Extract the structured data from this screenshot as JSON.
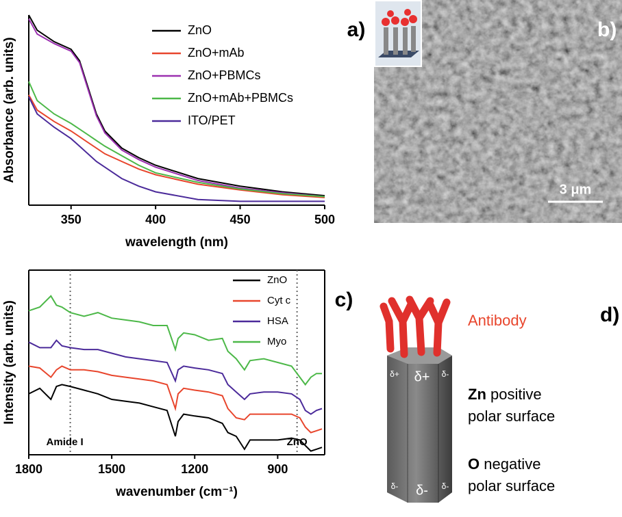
{
  "chart_data": [
    {
      "type": "line",
      "panel_label": "a)",
      "xlabel": "wavelength (nm)",
      "ylabel": "Absorbance (arb. units)",
      "x": [
        325,
        330,
        340,
        350,
        355,
        360,
        365,
        370,
        380,
        390,
        400,
        425,
        450,
        475,
        500
      ],
      "xlim": [
        325,
        500
      ],
      "xticks": [
        350,
        400,
        450,
        500
      ],
      "ylim": [
        0,
        1
      ],
      "frame": false,
      "legend": "upper right",
      "series": [
        {
          "name": "ZnO",
          "color": "#000000",
          "values": [
            1.0,
            0.92,
            0.86,
            0.82,
            0.76,
            0.62,
            0.48,
            0.39,
            0.3,
            0.25,
            0.21,
            0.14,
            0.1,
            0.07,
            0.05
          ]
        },
        {
          "name": "ZnO+mAb",
          "color": "#e8452c",
          "values": [
            0.58,
            0.5,
            0.44,
            0.39,
            0.36,
            0.33,
            0.3,
            0.27,
            0.23,
            0.19,
            0.16,
            0.11,
            0.08,
            0.055,
            0.04
          ]
        },
        {
          "name": "ZnO+PBMCs",
          "color": "#9b30b0",
          "values": [
            0.98,
            0.9,
            0.85,
            0.81,
            0.75,
            0.61,
            0.47,
            0.38,
            0.29,
            0.24,
            0.2,
            0.13,
            0.09,
            0.065,
            0.045
          ]
        },
        {
          "name": "ZnO+mAb+PBMCs",
          "color": "#4cb848",
          "values": [
            0.65,
            0.55,
            0.48,
            0.43,
            0.4,
            0.37,
            0.34,
            0.31,
            0.26,
            0.21,
            0.17,
            0.12,
            0.085,
            0.06,
            0.045
          ]
        },
        {
          "name": "ITO/PET",
          "color": "#4b2a9a",
          "values": [
            0.57,
            0.48,
            0.41,
            0.35,
            0.31,
            0.27,
            0.23,
            0.2,
            0.14,
            0.1,
            0.07,
            0.03,
            0.02,
            0.02,
            0.02
          ]
        }
      ]
    },
    {
      "type": "line",
      "panel_label": "c)",
      "xlabel": "wavenumber (cm⁻¹)",
      "ylabel": "Intensity (arb. units)",
      "x": [
        1800,
        1760,
        1720,
        1700,
        1680,
        1650,
        1600,
        1550,
        1500,
        1450,
        1400,
        1350,
        1300,
        1270,
        1260,
        1240,
        1200,
        1150,
        1100,
        1080,
        1050,
        1020,
        1000,
        950,
        900,
        850,
        820,
        800,
        780,
        760,
        740
      ],
      "xlim": [
        1800,
        730
      ],
      "xticks": [
        1800,
        1500,
        1200,
        900
      ],
      "ylim": [
        0,
        1
      ],
      "frame": true,
      "legend": "upper right",
      "vlines": [
        {
          "value": 1650,
          "label": "Amide I"
        },
        {
          "value": 830,
          "label": "ZnO"
        }
      ],
      "series": [
        {
          "name": "ZnO",
          "color": "#000000",
          "values": [
            0.33,
            0.36,
            0.3,
            0.37,
            0.38,
            0.37,
            0.35,
            0.33,
            0.3,
            0.29,
            0.28,
            0.26,
            0.24,
            0.1,
            0.18,
            0.22,
            0.21,
            0.2,
            0.17,
            0.12,
            0.1,
            0.03,
            0.08,
            0.08,
            0.08,
            0.09,
            0.08,
            0.05,
            0.02,
            0.03,
            0.04
          ]
        },
        {
          "name": "Cyt c",
          "color": "#e8452c",
          "values": [
            0.48,
            0.47,
            0.42,
            0.46,
            0.48,
            0.46,
            0.46,
            0.45,
            0.43,
            0.42,
            0.41,
            0.4,
            0.38,
            0.25,
            0.33,
            0.36,
            0.35,
            0.34,
            0.32,
            0.25,
            0.2,
            0.19,
            0.22,
            0.22,
            0.22,
            0.22,
            0.2,
            0.15,
            0.12,
            0.13,
            0.14
          ]
        },
        {
          "name": "HSA",
          "color": "#4b2a9a",
          "values": [
            0.61,
            0.58,
            0.58,
            0.62,
            0.59,
            0.58,
            0.57,
            0.57,
            0.55,
            0.53,
            0.52,
            0.51,
            0.5,
            0.4,
            0.46,
            0.48,
            0.47,
            0.46,
            0.44,
            0.38,
            0.34,
            0.3,
            0.33,
            0.34,
            0.34,
            0.33,
            0.3,
            0.24,
            0.22,
            0.24,
            0.25
          ]
        },
        {
          "name": "Myo",
          "color": "#4cb848",
          "values": [
            0.78,
            0.8,
            0.86,
            0.81,
            0.8,
            0.77,
            0.75,
            0.77,
            0.74,
            0.73,
            0.72,
            0.7,
            0.7,
            0.57,
            0.63,
            0.66,
            0.65,
            0.62,
            0.63,
            0.56,
            0.52,
            0.46,
            0.51,
            0.52,
            0.5,
            0.48,
            0.42,
            0.38,
            0.42,
            0.44,
            0.44
          ]
        }
      ]
    }
  ],
  "panel_b": {
    "label": "b)",
    "scale_bar": "3 μm"
  },
  "panel_d": {
    "label": "d)",
    "antibody": "Antibody",
    "zn": "Zn",
    "zn_text": "positive",
    "zn_text2": "polar surface",
    "o": "O",
    "o_text": "negative",
    "o_text2": "polar surface",
    "charges": [
      "δ+",
      "δ+",
      "δ-",
      "δ-",
      "δ-",
      "δ-"
    ]
  }
}
